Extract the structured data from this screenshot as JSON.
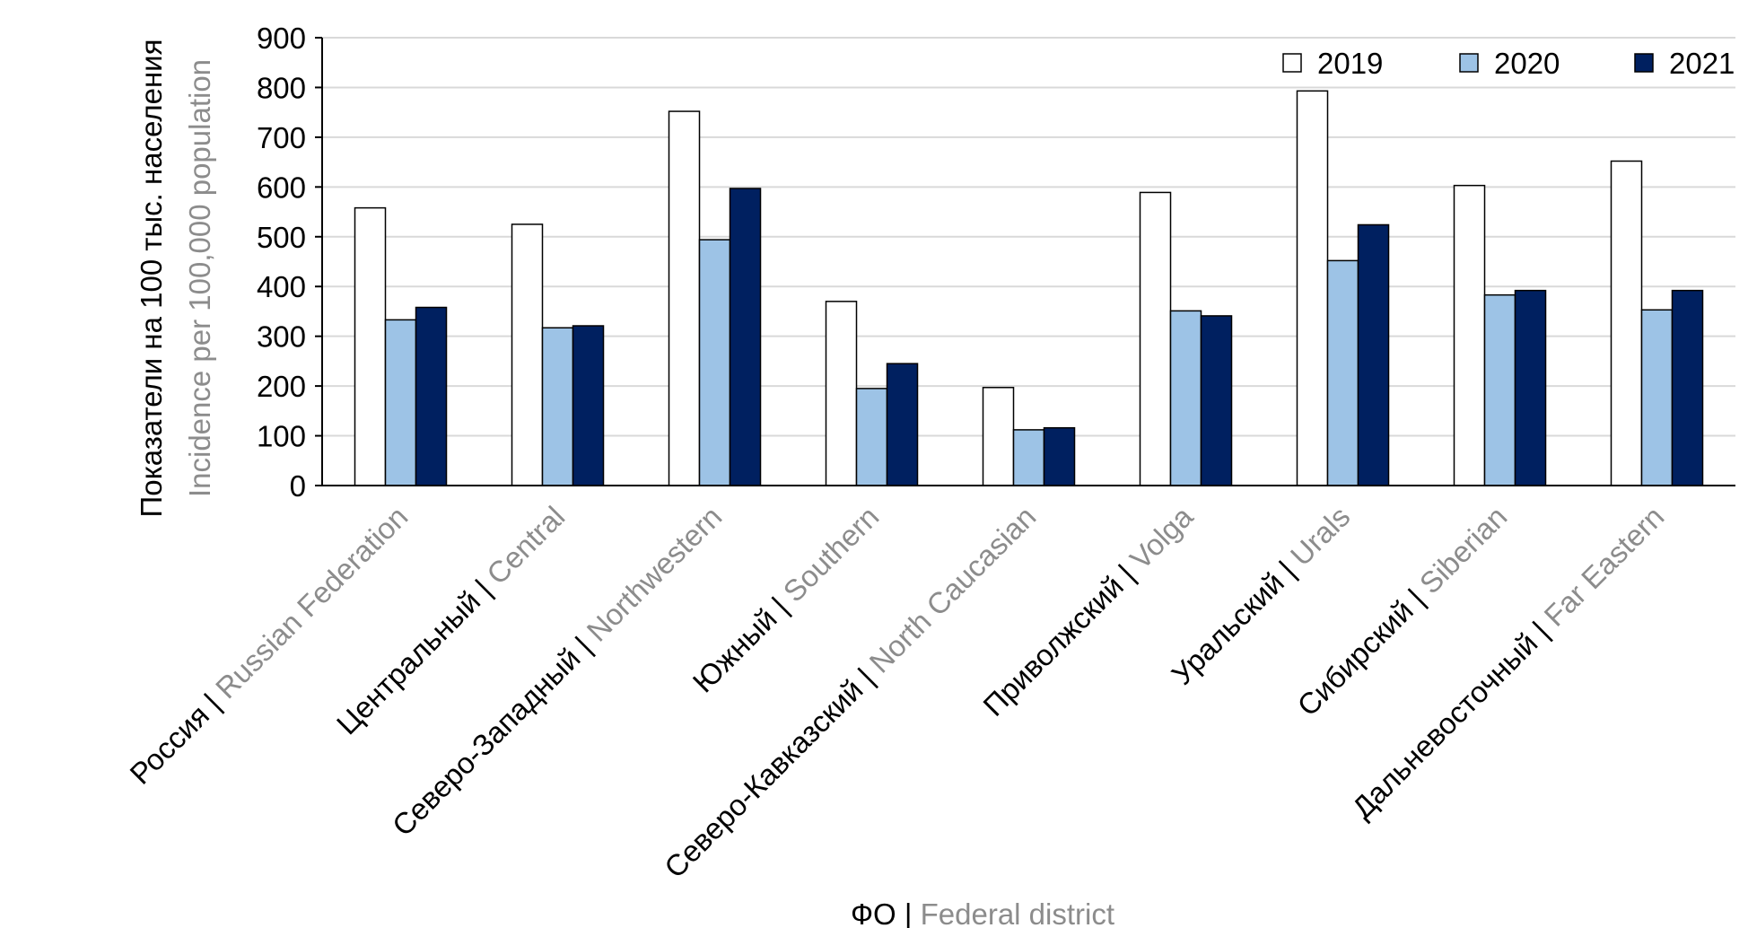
{
  "chart_data": {
    "type": "bar",
    "y_label": {
      "ru": "Показатели на 100 тыс. населения",
      "en": "Incidence per 100,000 population"
    },
    "x_label": {
      "ru": "ФО |",
      "en": "Federal district"
    },
    "categories": [
      {
        "ru": "Россия |",
        "en": "Russian Federation"
      },
      {
        "ru": "Центральный |",
        "en": "Central"
      },
      {
        "ru": "Северо-Западный |",
        "en": "Northwestern"
      },
      {
        "ru": "Южный |",
        "en": "Southern"
      },
      {
        "ru": "Северо-Кавказский |",
        "en": "North Caucasian"
      },
      {
        "ru": "Приволжский |",
        "en": "Volga"
      },
      {
        "ru": "Уральский |",
        "en": "Urals"
      },
      {
        "ru": "Сибирский |",
        "en": "Siberian"
      },
      {
        "ru": "Дальневосточный |",
        "en": "Far Eastern"
      }
    ],
    "series": [
      {
        "name": "2019",
        "color": "#ffffff",
        "values": [
          558,
          525,
          752,
          370,
          197,
          589,
          793,
          603,
          652
        ]
      },
      {
        "name": "2020",
        "color": "#9dc3e6",
        "values": [
          333,
          317,
          494,
          195,
          112,
          351,
          452,
          383,
          353
        ]
      },
      {
        "name": "2021",
        "color": "#002060",
        "values": [
          358,
          321,
          597,
          245,
          116,
          341,
          524,
          392,
          392
        ]
      }
    ],
    "ylim": [
      0,
      900
    ],
    "yticks": [
      0,
      100,
      200,
      300,
      400,
      500,
      600,
      700,
      800,
      900
    ],
    "grid": true,
    "legend": "top-right"
  }
}
